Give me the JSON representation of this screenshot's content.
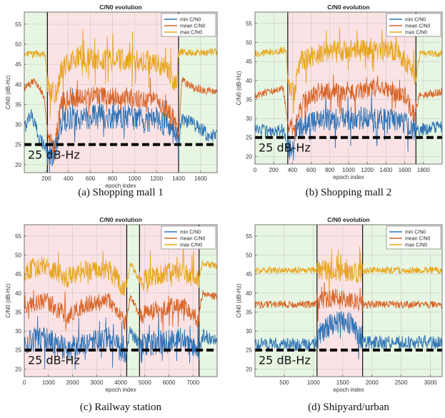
{
  "colors": {
    "min": "#2f73b5",
    "mean": "#d86426",
    "max": "#e7a51c",
    "outdoor_bg": "#e6f6e2",
    "indoor_bg": "#fbe3e5",
    "threshold": "#000000"
  },
  "chart_data": [
    {
      "type": "line",
      "title": "C/N0 evolution",
      "xlabel": "epoch index",
      "ylabel": "C/N0 (dB-Hz)",
      "caption": "(a)  Shopping mall 1",
      "xlim": [
        0,
        1750
      ],
      "ylim": [
        18,
        58
      ],
      "xticks": [
        200,
        400,
        600,
        800,
        1000,
        1200,
        1400,
        1600
      ],
      "yticks": [
        20,
        25,
        30,
        35,
        40,
        45,
        50,
        55
      ],
      "legend_position": "top-right",
      "series": [
        {
          "name": "min C/N0"
        },
        {
          "name": "mean C/N0"
        },
        {
          "name": "max C/N0"
        }
      ],
      "threshold": {
        "value": 25,
        "label": "25 dB-Hz"
      },
      "regions": [
        {
          "kind": "outdoor",
          "x": [
            0,
            210
          ]
        },
        {
          "kind": "indoor",
          "x": [
            210,
            1400
          ]
        },
        {
          "kind": "outdoor",
          "x": [
            1400,
            1750
          ]
        }
      ],
      "profile": {
        "min": [
          [
            0,
            29
          ],
          [
            60,
            33
          ],
          [
            130,
            27
          ],
          [
            200,
            24
          ],
          [
            230,
            21
          ],
          [
            300,
            25
          ],
          [
            340,
            31
          ],
          [
            600,
            32
          ],
          [
            900,
            32
          ],
          [
            1200,
            31
          ],
          [
            1330,
            29
          ],
          [
            1400,
            26
          ],
          [
            1430,
            31
          ],
          [
            1550,
            30
          ],
          [
            1680,
            27
          ],
          [
            1750,
            27
          ]
        ],
        "mean": [
          [
            0,
            39
          ],
          [
            100,
            41
          ],
          [
            180,
            37
          ],
          [
            220,
            26
          ],
          [
            280,
            25
          ],
          [
            340,
            36
          ],
          [
            600,
            37
          ],
          [
            900,
            37
          ],
          [
            1200,
            36
          ],
          [
            1350,
            32
          ],
          [
            1400,
            27
          ],
          [
            1430,
            41
          ],
          [
            1550,
            39
          ],
          [
            1750,
            38
          ]
        ],
        "max": [
          [
            0,
            47.5
          ],
          [
            190,
            47.5
          ],
          [
            220,
            38
          ],
          [
            300,
            38
          ],
          [
            340,
            44
          ],
          [
            500,
            47
          ],
          [
            800,
            46
          ],
          [
            1100,
            46
          ],
          [
            1300,
            44
          ],
          [
            1380,
            40
          ],
          [
            1400,
            48
          ],
          [
            1750,
            48
          ]
        ]
      }
    },
    {
      "type": "line",
      "title": "C/N0 evolution",
      "xlabel": "epoch index",
      "ylabel": "C/N0 (dB-Hz)",
      "caption": "(b)  Shopping mall 2",
      "xlim": [
        0,
        2000
      ],
      "ylim": [
        18,
        58
      ],
      "xticks": [
        0,
        200,
        400,
        600,
        800,
        1000,
        1200,
        1400,
        1600,
        1800
      ],
      "yticks": [
        20,
        25,
        30,
        35,
        40,
        45,
        50,
        55
      ],
      "legend_position": "top-right",
      "series": [
        {
          "name": "min C/N0"
        },
        {
          "name": "mean C/N0"
        },
        {
          "name": "max C/N0"
        }
      ],
      "threshold": {
        "value": 25,
        "label": "25 dB-Hz"
      },
      "regions": [
        {
          "kind": "outdoor",
          "x": [
            0,
            350
          ]
        },
        {
          "kind": "indoor",
          "x": [
            350,
            1720
          ]
        },
        {
          "kind": "outdoor",
          "x": [
            1720,
            2000
          ]
        }
      ],
      "profile": {
        "min": [
          [
            0,
            28
          ],
          [
            150,
            26
          ],
          [
            300,
            27
          ],
          [
            340,
            23
          ],
          [
            380,
            22
          ],
          [
            450,
            28
          ],
          [
            700,
            30
          ],
          [
            1000,
            30
          ],
          [
            1300,
            30
          ],
          [
            1600,
            29
          ],
          [
            1700,
            27
          ],
          [
            1760,
            27
          ],
          [
            2000,
            28
          ]
        ],
        "mean": [
          [
            0,
            36
          ],
          [
            150,
            37
          ],
          [
            300,
            38
          ],
          [
            350,
            29
          ],
          [
            420,
            27
          ],
          [
            480,
            34
          ],
          [
            700,
            37
          ],
          [
            1000,
            37
          ],
          [
            1300,
            38
          ],
          [
            1600,
            36
          ],
          [
            1700,
            31
          ],
          [
            1760,
            36
          ],
          [
            2000,
            37
          ]
        ],
        "max": [
          [
            0,
            47
          ],
          [
            330,
            48
          ],
          [
            360,
            38
          ],
          [
            420,
            37
          ],
          [
            480,
            45
          ],
          [
            800,
            48
          ],
          [
            1200,
            48
          ],
          [
            1500,
            48
          ],
          [
            1650,
            44
          ],
          [
            1720,
            40
          ],
          [
            1760,
            47
          ],
          [
            2000,
            47
          ]
        ]
      }
    },
    {
      "type": "line",
      "title": "C/N0 evolution",
      "xlabel": "epoch index",
      "ylabel": "C/N0 (dB-Hz)",
      "caption": "(c)  Railway station",
      "xlim": [
        0,
        8000
      ],
      "ylim": [
        18,
        58
      ],
      "xticks": [
        0,
        1000,
        2000,
        3000,
        4000,
        5000,
        6000,
        7000
      ],
      "yticks": [
        20,
        25,
        30,
        35,
        40,
        45,
        50,
        55
      ],
      "legend_position": "top-right",
      "series": [
        {
          "name": "min C/N0"
        },
        {
          "name": "mean C/N0"
        },
        {
          "name": "max C/N0"
        }
      ],
      "threshold": {
        "value": 25,
        "label": "25 dB-Hz"
      },
      "regions": [
        {
          "kind": "indoor",
          "x": [
            0,
            4250
          ]
        },
        {
          "kind": "outdoor",
          "x": [
            4250,
            4780
          ]
        },
        {
          "kind": "indoor",
          "x": [
            4780,
            7250
          ]
        },
        {
          "kind": "outdoor",
          "x": [
            7250,
            8000
          ]
        }
      ],
      "profile": {
        "min": [
          [
            0,
            27
          ],
          [
            800,
            28
          ],
          [
            1800,
            25
          ],
          [
            2500,
            27
          ],
          [
            3500,
            28
          ],
          [
            4200,
            24
          ],
          [
            4400,
            30
          ],
          [
            4800,
            26
          ],
          [
            5600,
            27
          ],
          [
            6600,
            28
          ],
          [
            7200,
            24
          ],
          [
            7400,
            29
          ],
          [
            8000,
            27
          ]
        ],
        "mean": [
          [
            0,
            37
          ],
          [
            800,
            38
          ],
          [
            1800,
            34
          ],
          [
            2500,
            37
          ],
          [
            3500,
            38
          ],
          [
            4200,
            32
          ],
          [
            4400,
            39
          ],
          [
            4800,
            34
          ],
          [
            5600,
            36
          ],
          [
            6600,
            37
          ],
          [
            7200,
            33
          ],
          [
            7400,
            40
          ],
          [
            8000,
            39
          ]
        ],
        "max": [
          [
            0,
            46
          ],
          [
            800,
            47
          ],
          [
            1800,
            44
          ],
          [
            2500,
            46
          ],
          [
            3500,
            46
          ],
          [
            4200,
            41
          ],
          [
            4400,
            48
          ],
          [
            4800,
            43
          ],
          [
            5600,
            45
          ],
          [
            6600,
            46
          ],
          [
            7200,
            43
          ],
          [
            7400,
            48
          ],
          [
            8000,
            47
          ]
        ]
      }
    },
    {
      "type": "line",
      "title": "C/N0 evolution",
      "xlabel": "epoch index",
      "ylabel": "C/N0 (dB-Hz)",
      "caption": "(d)  Shipyard/urban",
      "xlim": [
        0,
        3200
      ],
      "ylim": [
        18,
        58
      ],
      "xticks": [
        500,
        1000,
        1500,
        2000,
        2500,
        3000
      ],
      "yticks": [
        20,
        25,
        30,
        35,
        40,
        45,
        50,
        55
      ],
      "legend_position": "top-right",
      "series": [
        {
          "name": "min C/N0"
        },
        {
          "name": "mean C/N0"
        },
        {
          "name": "max C/N0"
        }
      ],
      "threshold": {
        "value": 25,
        "label": "25 dB-Hz"
      },
      "regions": [
        {
          "kind": "outdoor",
          "x": [
            0,
            1060
          ]
        },
        {
          "kind": "indoor",
          "x": [
            1060,
            1840
          ]
        },
        {
          "kind": "outdoor",
          "x": [
            1840,
            3200
          ]
        }
      ],
      "profile": {
        "min": [
          [
            0,
            26.5
          ],
          [
            1000,
            26.5
          ],
          [
            1100,
            29
          ],
          [
            1300,
            32
          ],
          [
            1500,
            33
          ],
          [
            1700,
            31
          ],
          [
            1850,
            27
          ],
          [
            2200,
            27
          ],
          [
            2800,
            27
          ],
          [
            3200,
            27
          ]
        ],
        "mean": [
          [
            0,
            37
          ],
          [
            1000,
            37
          ],
          [
            1100,
            38
          ],
          [
            1400,
            39
          ],
          [
            1700,
            38
          ],
          [
            1850,
            37
          ],
          [
            2500,
            37
          ],
          [
            3200,
            37
          ]
        ],
        "max": [
          [
            0,
            46
          ],
          [
            1000,
            46
          ],
          [
            1100,
            46
          ],
          [
            1400,
            46
          ],
          [
            1700,
            45
          ],
          [
            1850,
            46
          ],
          [
            2500,
            46
          ],
          [
            3200,
            46
          ]
        ]
      }
    }
  ]
}
